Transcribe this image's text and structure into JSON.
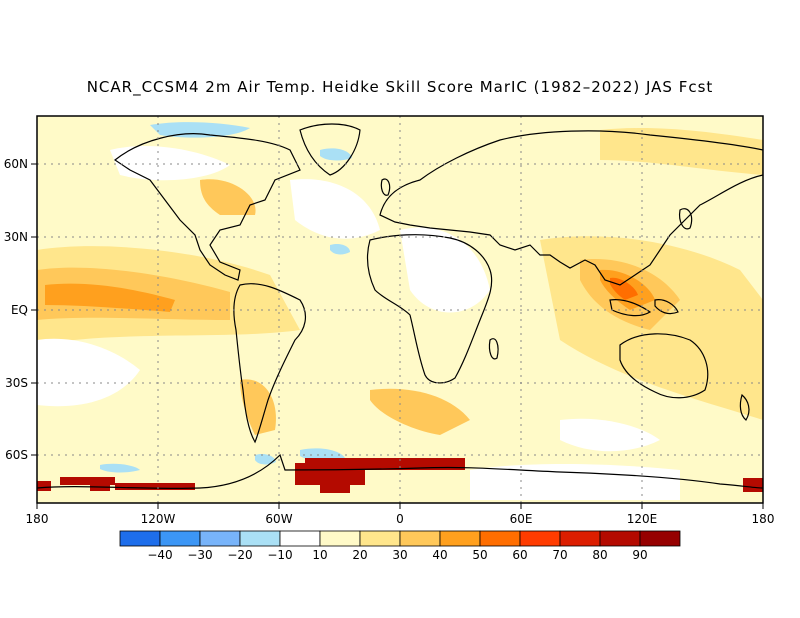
{
  "title": "NCAR_CCSM4 2m Air Temp. Heidke Skill Score MarIC (1982–2022) JAS Fcst",
  "map": {
    "lon_labels": [
      "180",
      "120W",
      "60W",
      "0",
      "60E",
      "120E",
      "180"
    ],
    "lat_labels": [
      "60N",
      "30N",
      "EQ",
      "30S",
      "60S"
    ],
    "colorbar_labels": [
      "−40",
      "−30",
      "−20",
      "−10",
      "10",
      "20",
      "30",
      "40",
      "50",
      "60",
      "70",
      "80",
      "90"
    ],
    "colorbar_colors": [
      "#1e6eeb",
      "#3c96f5",
      "#78b4fa",
      "#aae0f5",
      "#ffffff",
      "#fffac8",
      "#ffe68c",
      "#ffc85a",
      "#ffa01e",
      "#ff6e00",
      "#ff3c00",
      "#dc1e00",
      "#b40a00",
      "#960000"
    ],
    "land_outline_color": "#000000",
    "grid_color": "#888888"
  }
}
